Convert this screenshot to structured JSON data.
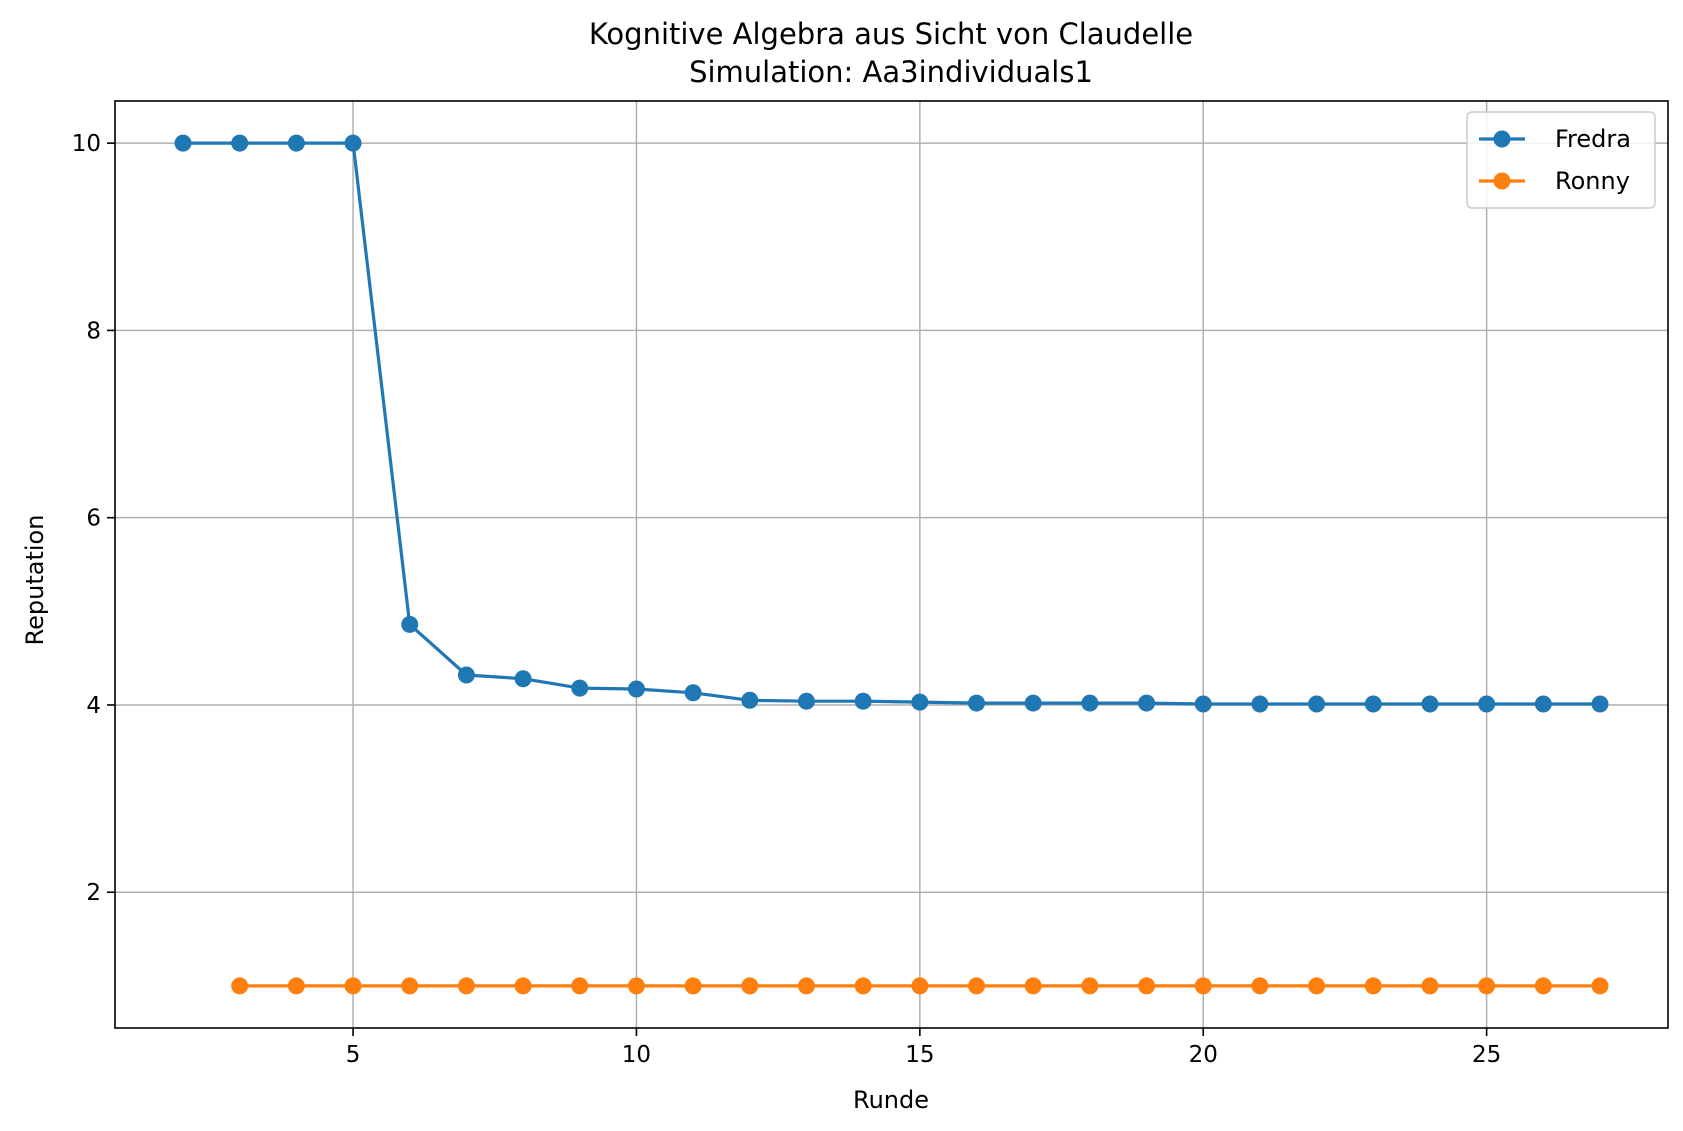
{
  "chart_data": {
    "type": "line",
    "title": "Kognitive Algebra aus Sicht von Claudelle",
    "subtitle": "Simulation: Aa3individuals1",
    "xlabel": "Runde",
    "ylabel": "Reputation",
    "xlim": [
      0.8,
      28.2
    ],
    "ylim": [
      0.55,
      10.45
    ],
    "xticks": [
      5,
      10,
      15,
      20,
      25
    ],
    "yticks": [
      2,
      4,
      6,
      8,
      10
    ],
    "grid": true,
    "legend_position": "top-right",
    "series": [
      {
        "name": "Fredra",
        "color": "#1f77b4",
        "x": [
          2,
          3,
          4,
          5,
          6,
          7,
          8,
          9,
          10,
          11,
          12,
          13,
          14,
          15,
          16,
          17,
          18,
          19,
          20,
          21,
          22,
          23,
          24,
          25,
          26,
          27
        ],
        "y": [
          10,
          10,
          10,
          10,
          4.86,
          4.32,
          4.28,
          4.18,
          4.17,
          4.13,
          4.05,
          4.04,
          4.04,
          4.03,
          4.02,
          4.02,
          4.02,
          4.02,
          4.01,
          4.01,
          4.01,
          4.01,
          4.01,
          4.01,
          4.01,
          4.01
        ]
      },
      {
        "name": "Ronny",
        "color": "#ff7f0e",
        "x": [
          3,
          4,
          5,
          6,
          7,
          8,
          9,
          10,
          11,
          12,
          13,
          14,
          15,
          16,
          17,
          18,
          19,
          20,
          21,
          22,
          23,
          24,
          25,
          26,
          27
        ],
        "y": [
          1,
          1,
          1,
          1,
          1,
          1,
          1,
          1,
          1,
          1,
          1,
          1,
          1,
          1,
          1,
          1,
          1,
          1,
          1,
          1,
          1,
          1,
          1,
          1,
          1
        ]
      }
    ]
  }
}
